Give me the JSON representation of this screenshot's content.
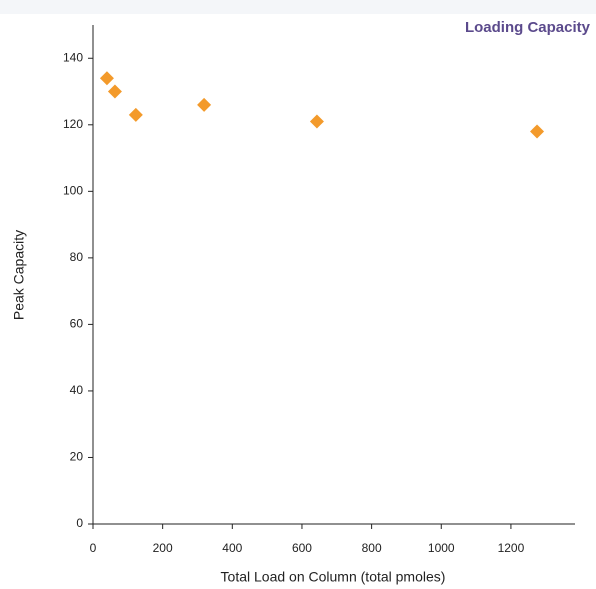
{
  "chart_data": {
    "type": "scatter",
    "title": "Loading Capacity",
    "x_label": "Total Load on Column (total pmoles)",
    "y_label": "Peak Capacity",
    "x": [
      40,
      63,
      123,
      319,
      643,
      1275
    ],
    "values": [
      134,
      130,
      123,
      126,
      121,
      118
    ],
    "color": "#f39a2b",
    "xlim": [
      0,
      1384
    ],
    "xticks": [
      0,
      200,
      400,
      600,
      800,
      1000,
      1200
    ],
    "ylim": [
      0,
      150
    ],
    "yticks": [
      0,
      20,
      40,
      60,
      80,
      100,
      120,
      140
    ],
    "grid": false
  }
}
